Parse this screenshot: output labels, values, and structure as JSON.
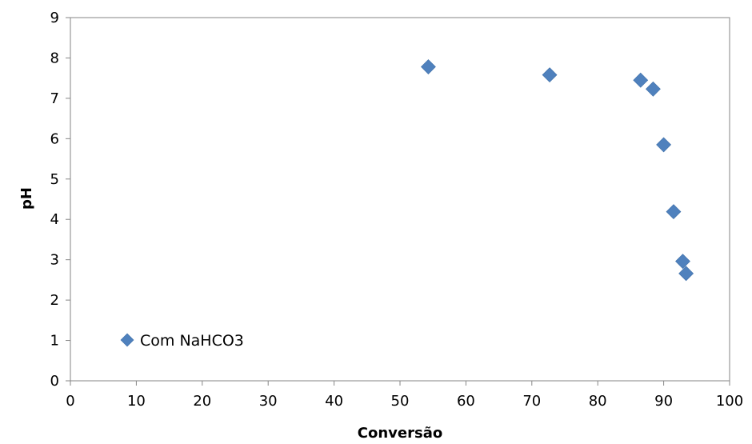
{
  "chart_data": {
    "type": "scatter",
    "xlabel": "Conversão",
    "ylabel": "pH",
    "xlim": [
      0,
      100
    ],
    "ylim": [
      0,
      9
    ],
    "xticks": [
      0,
      10,
      20,
      30,
      40,
      50,
      60,
      70,
      80,
      90,
      100
    ],
    "yticks": [
      0,
      1,
      2,
      3,
      4,
      5,
      6,
      7,
      8,
      9
    ],
    "grid": false,
    "legend_position": "bottom-left",
    "marker": "diamond",
    "series": [
      {
        "name": "Com NaHCO3",
        "color": "#4F81BD",
        "points": [
          {
            "x": 54.3,
            "y": 7.78
          },
          {
            "x": 72.7,
            "y": 7.58
          },
          {
            "x": 86.5,
            "y": 7.45
          },
          {
            "x": 88.4,
            "y": 7.23
          },
          {
            "x": 90.0,
            "y": 5.85
          },
          {
            "x": 91.5,
            "y": 4.19
          },
          {
            "x": 92.9,
            "y": 2.96
          },
          {
            "x": 93.4,
            "y": 2.66
          }
        ]
      }
    ]
  }
}
